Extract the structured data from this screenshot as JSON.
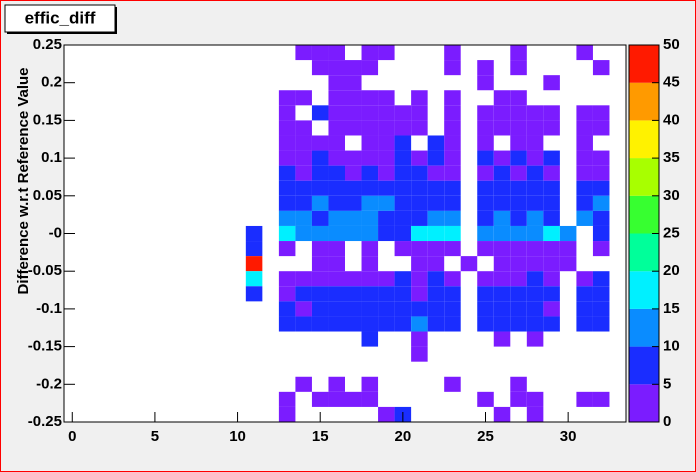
{
  "chart_data": {
    "type": "heatmap",
    "title": "effic_diff",
    "y_label": "Difference w.r.t Reference Value",
    "xlim": [
      -0.5,
      33.5
    ],
    "ylim": [
      -0.25,
      0.25
    ],
    "zlim": [
      0,
      50
    ],
    "xticks": [
      0,
      5,
      10,
      15,
      20,
      25,
      30
    ],
    "yticks": [
      0.25,
      0.2,
      0.15,
      0.1,
      0.05,
      {
        "value": 0,
        "label": "-0"
      },
      -0.05,
      -0.1,
      -0.15,
      -0.2,
      -0.25
    ],
    "zticks": [
      0,
      5,
      10,
      15,
      20,
      25,
      30,
      35,
      40,
      45,
      50
    ],
    "palette": [
      "#7b1cff",
      "#1a2dff",
      "#0a8cff",
      "#00f0ff",
      "#00ff9a",
      "#37ff30",
      "#a8ff00",
      "#fff200",
      "#ff9a00",
      "#ff1a00"
    ],
    "x": [
      11,
      12,
      13,
      14,
      15,
      16,
      17,
      18,
      19,
      20,
      21,
      22,
      23,
      24,
      25,
      26,
      27,
      28,
      29,
      30,
      31,
      32
    ],
    "y": [
      0.24,
      0.22,
      0.2,
      0.18,
      0.16,
      0.14,
      0.12,
      0.1,
      0.08,
      0.06,
      0.04,
      0.02,
      0,
      -0.02,
      -0.04,
      -0.06,
      -0.08,
      -0.1,
      -0.12,
      -0.14,
      -0.16,
      -0.18,
      -0.2,
      -0.22,
      -0.24
    ],
    "z": [
      [
        null,
        null,
        null,
        2,
        2,
        2,
        null,
        2,
        2,
        null,
        null,
        null,
        2,
        null,
        null,
        null,
        2,
        null,
        null,
        null,
        2,
        null
      ],
      [
        null,
        null,
        null,
        null,
        2,
        2,
        2,
        2,
        null,
        null,
        null,
        null,
        2,
        null,
        2,
        null,
        2,
        null,
        null,
        null,
        null,
        2
      ],
      [
        null,
        null,
        null,
        null,
        null,
        2,
        2,
        null,
        null,
        null,
        null,
        null,
        null,
        null,
        2,
        null,
        null,
        null,
        2,
        null,
        null,
        null
      ],
      [
        null,
        null,
        2,
        2,
        null,
        2,
        2,
        2,
        2,
        null,
        2,
        null,
        2,
        null,
        null,
        2,
        2,
        null,
        null,
        null,
        null,
        null
      ],
      [
        null,
        null,
        2,
        null,
        6,
        2,
        2,
        2,
        2,
        2,
        2,
        null,
        2,
        null,
        2,
        2,
        2,
        2,
        2,
        null,
        2,
        2
      ],
      [
        null,
        null,
        2,
        2,
        null,
        2,
        2,
        2,
        2,
        2,
        2,
        null,
        2,
        null,
        2,
        2,
        2,
        2,
        2,
        null,
        2,
        2
      ],
      [
        null,
        null,
        2,
        2,
        2,
        2,
        null,
        2,
        2,
        6,
        null,
        6,
        2,
        null,
        2,
        null,
        2,
        2,
        null,
        null,
        2,
        null
      ],
      [
        null,
        null,
        2,
        2,
        6,
        2,
        2,
        2,
        2,
        6,
        2,
        6,
        2,
        null,
        6,
        2,
        6,
        2,
        6,
        null,
        2,
        2
      ],
      [
        null,
        null,
        6,
        2,
        6,
        6,
        2,
        6,
        2,
        6,
        6,
        2,
        2,
        null,
        2,
        6,
        2,
        6,
        2,
        null,
        2,
        2
      ],
      [
        null,
        null,
        6,
        6,
        9,
        6,
        6,
        9,
        6,
        6,
        6,
        9,
        6,
        null,
        9,
        6,
        9,
        6,
        6,
        null,
        6,
        9
      ],
      [
        null,
        null,
        6,
        9,
        12,
        9,
        9,
        12,
        12,
        9,
        6,
        6,
        9,
        null,
        9,
        6,
        9,
        9,
        6,
        null,
        9,
        12
      ],
      [
        null,
        null,
        12,
        12,
        6,
        12,
        12,
        12,
        6,
        9,
        6,
        12,
        12,
        null,
        9,
        12,
        6,
        12,
        9,
        null,
        12,
        6
      ],
      [
        6,
        null,
        15,
        12,
        12,
        12,
        12,
        12,
        6,
        6,
        19,
        15,
        15,
        null,
        12,
        12,
        12,
        12,
        15,
        12,
        null,
        9
      ],
      [
        6,
        null,
        2,
        null,
        2,
        2,
        null,
        2,
        null,
        2,
        2,
        2,
        2,
        null,
        2,
        2,
        2,
        2,
        2,
        2,
        null,
        2
      ],
      [
        47,
        null,
        null,
        null,
        2,
        2,
        null,
        2,
        null,
        null,
        2,
        2,
        null,
        2,
        null,
        2,
        2,
        2,
        2,
        2,
        null,
        null
      ],
      [
        15,
        null,
        2,
        2,
        2,
        2,
        2,
        2,
        2,
        6,
        2,
        6,
        2,
        null,
        2,
        2,
        2,
        6,
        2,
        null,
        2,
        6
      ],
      [
        6,
        null,
        2,
        6,
        6,
        6,
        6,
        6,
        6,
        6,
        2,
        6,
        6,
        null,
        6,
        6,
        6,
        6,
        6,
        null,
        6,
        6
      ],
      [
        null,
        null,
        6,
        2,
        6,
        6,
        6,
        6,
        6,
        6,
        9,
        6,
        6,
        null,
        6,
        6,
        9,
        6,
        2,
        null,
        6,
        6
      ],
      [
        null,
        null,
        6,
        6,
        6,
        6,
        6,
        6,
        6,
        6,
        12,
        6,
        6,
        null,
        6,
        6,
        6,
        6,
        6,
        null,
        6,
        6
      ],
      [
        null,
        null,
        null,
        null,
        null,
        null,
        null,
        6,
        null,
        null,
        2,
        null,
        null,
        null,
        null,
        2,
        null,
        2,
        null,
        null,
        null,
        null
      ],
      [
        null,
        null,
        null,
        null,
        null,
        null,
        null,
        null,
        null,
        null,
        2,
        null,
        null,
        null,
        null,
        null,
        null,
        null,
        null,
        null,
        null,
        null
      ],
      [
        null,
        null,
        null,
        null,
        null,
        null,
        null,
        null,
        null,
        null,
        null,
        null,
        null,
        null,
        null,
        null,
        null,
        null,
        null,
        null,
        null,
        null
      ],
      [
        null,
        null,
        null,
        2,
        null,
        2,
        null,
        2,
        null,
        null,
        null,
        null,
        2,
        null,
        null,
        null,
        2,
        null,
        null,
        null,
        null,
        null
      ],
      [
        null,
        null,
        2,
        null,
        2,
        2,
        2,
        2,
        null,
        null,
        null,
        null,
        null,
        null,
        2,
        null,
        2,
        2,
        null,
        null,
        2,
        2
      ],
      [
        null,
        null,
        2,
        null,
        null,
        null,
        null,
        null,
        2,
        6,
        null,
        null,
        null,
        null,
        null,
        2,
        null,
        2,
        null,
        null,
        null,
        null
      ]
    ]
  }
}
